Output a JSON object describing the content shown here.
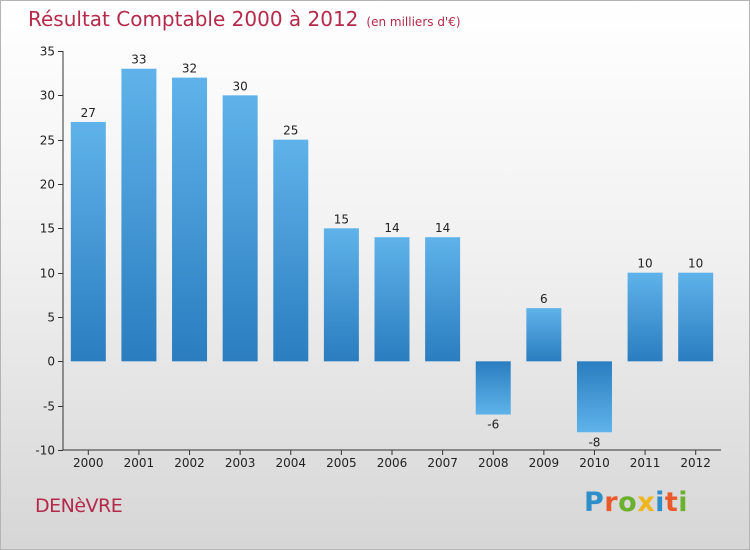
{
  "title": "Résultat Comptable 2000 à 2012",
  "subtitle": "(en milliers d'€)",
  "town": "DENèVRE",
  "logo": {
    "text": "Proxiti",
    "letter_colors": [
      "#2d8ec9",
      "#e9592a",
      "#6bb12e",
      "#f0b51c",
      "#2d8ec9",
      "#e9592a",
      "#6bb12e"
    ]
  },
  "colors": {
    "title": "#b52a4a",
    "bar_top": "#5fb3ea",
    "bar_bottom": "#2a7dbf"
  },
  "chart_data": {
    "type": "bar",
    "categories": [
      "2000",
      "2001",
      "2002",
      "2003",
      "2004",
      "2005",
      "2006",
      "2007",
      "2008",
      "2009",
      "2010",
      "2011",
      "2012"
    ],
    "values": [
      27,
      33,
      32,
      30,
      25,
      15,
      14,
      14,
      -6,
      6,
      -8,
      10,
      10
    ],
    "data_labels": [
      "27",
      "33",
      "32",
      "30",
      "25",
      "15",
      "14",
      "14",
      "-6",
      "6",
      "-8",
      "10",
      "10"
    ],
    "ylim": [
      -10,
      35
    ],
    "yticks": [
      -10,
      -5,
      0,
      5,
      10,
      15,
      20,
      25,
      30,
      35
    ],
    "grid": false,
    "legend": "none"
  }
}
